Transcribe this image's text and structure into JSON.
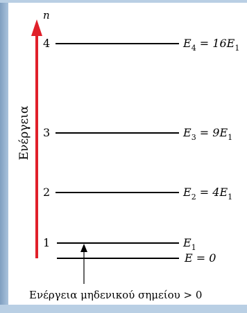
{
  "diagram": {
    "axis_symbol": "n",
    "axis_label": "Ενέργεια",
    "levels": [
      {
        "n": "4",
        "label_main": "E",
        "label_sub": "4",
        "label_rest": " = 16E",
        "label_rest_sub": "1",
        "color": "#000000"
      },
      {
        "n": "3",
        "label_main": "E",
        "label_sub": "3",
        "label_rest": " = 9E",
        "label_rest_sub": "1",
        "color": "#000000"
      },
      {
        "n": "2",
        "label_main": "E",
        "label_sub": "2",
        "label_rest": " = 4E",
        "label_rest_sub": "1",
        "color": "#000000"
      },
      {
        "n": "1",
        "label_main": "E",
        "label_sub": "1",
        "label_rest": "",
        "label_rest_sub": "",
        "color": "#000000"
      }
    ],
    "ground": {
      "label": "E = 0"
    },
    "zero_point_note": "Ενέργεια μηδενικού σημείου > 0",
    "arrow_color": "#e0202a"
  }
}
